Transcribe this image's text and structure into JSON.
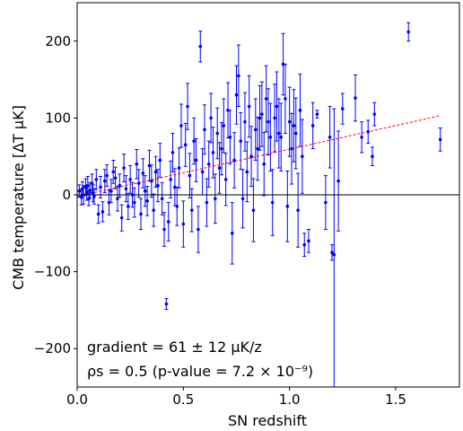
{
  "chart_data": {
    "type": "scatter",
    "xlabel": "SN redshift",
    "ylabel": "CMB temperature [ΔT μK]",
    "xlim": [
      0,
      1.8
    ],
    "ylim": [
      -250,
      250
    ],
    "xticks": [
      0.0,
      0.5,
      1.0,
      1.5
    ],
    "xtick_labels": [
      "0.0",
      "0.5",
      "1.0",
      "1.5"
    ],
    "yticks": [
      -200,
      -100,
      0,
      100,
      200
    ],
    "ytick_labels": [
      "−200",
      "−100",
      "0",
      "100",
      "200"
    ],
    "zero_line": true,
    "grid": false,
    "colors": {
      "points": "#0000ff",
      "fit": "#ff0000",
      "zero": "#000000"
    },
    "fit_line": {
      "x": [
        0.0,
        1.71
      ],
      "y": [
        -2,
        103
      ],
      "style": "dashed"
    },
    "annotations": [
      {
        "text": "gradient = 61 ± 12 μK/z",
        "position": "bottom-left"
      },
      {
        "text": "ρs = 0.5 (p-value = 7.2 × 10⁻⁹)",
        "position": "bottom-left"
      }
    ],
    "series": [
      {
        "points": [
          {
            "x": 0.01,
            "y": 5,
            "err": 8
          },
          {
            "x": 0.02,
            "y": -3,
            "err": 10
          },
          {
            "x": 0.025,
            "y": 8,
            "err": 9
          },
          {
            "x": 0.03,
            "y": 0,
            "err": 12
          },
          {
            "x": 0.04,
            "y": 10,
            "err": 11
          },
          {
            "x": 0.045,
            "y": 3,
            "err": 10
          },
          {
            "x": 0.05,
            "y": 12,
            "err": 12
          },
          {
            "x": 0.055,
            "y": -5,
            "err": 9
          },
          {
            "x": 0.06,
            "y": 6,
            "err": 10
          },
          {
            "x": 0.07,
            "y": 15,
            "err": 12
          },
          {
            "x": 0.075,
            "y": 2,
            "err": 11
          },
          {
            "x": 0.08,
            "y": -2,
            "err": 10
          },
          {
            "x": 0.09,
            "y": 20,
            "err": 13
          },
          {
            "x": 0.1,
            "y": -25,
            "err": 12
          },
          {
            "x": 0.11,
            "y": 10,
            "err": 14
          },
          {
            "x": 0.12,
            "y": -22,
            "err": 13
          },
          {
            "x": 0.13,
            "y": 18,
            "err": 15
          },
          {
            "x": 0.14,
            "y": 25,
            "err": 14
          },
          {
            "x": 0.15,
            "y": -10,
            "err": 16
          },
          {
            "x": 0.16,
            "y": 5,
            "err": 15
          },
          {
            "x": 0.17,
            "y": 30,
            "err": 15
          },
          {
            "x": 0.18,
            "y": 22,
            "err": 14
          },
          {
            "x": 0.19,
            "y": -5,
            "err": 16
          },
          {
            "x": 0.2,
            "y": 12,
            "err": 15
          },
          {
            "x": 0.21,
            "y": -30,
            "err": 17
          },
          {
            "x": 0.22,
            "y": 35,
            "err": 18
          },
          {
            "x": 0.23,
            "y": 8,
            "err": 17
          },
          {
            "x": 0.24,
            "y": -15,
            "err": 17
          },
          {
            "x": 0.25,
            "y": 20,
            "err": 18
          },
          {
            "x": 0.26,
            "y": 0,
            "err": 16
          },
          {
            "x": 0.27,
            "y": -10,
            "err": 19
          },
          {
            "x": 0.28,
            "y": 40,
            "err": 19
          },
          {
            "x": 0.29,
            "y": 15,
            "err": 18
          },
          {
            "x": 0.3,
            "y": -25,
            "err": 20
          },
          {
            "x": 0.31,
            "y": 28,
            "err": 19
          },
          {
            "x": 0.32,
            "y": 5,
            "err": 20
          },
          {
            "x": 0.33,
            "y": -8,
            "err": 19
          },
          {
            "x": 0.34,
            "y": 38,
            "err": 20
          },
          {
            "x": 0.35,
            "y": 18,
            "err": 21
          },
          {
            "x": 0.36,
            "y": -20,
            "err": 21
          },
          {
            "x": 0.37,
            "y": 30,
            "err": 20
          },
          {
            "x": 0.38,
            "y": 12,
            "err": 21
          },
          {
            "x": 0.39,
            "y": 45,
            "err": 22
          },
          {
            "x": 0.4,
            "y": -5,
            "err": 21
          },
          {
            "x": 0.41,
            "y": -45,
            "err": 22
          },
          {
            "x": 0.42,
            "y": -142,
            "err": 7
          },
          {
            "x": 0.43,
            "y": -35,
            "err": 25
          },
          {
            "x": 0.44,
            "y": 20,
            "err": 24
          },
          {
            "x": 0.45,
            "y": 55,
            "err": 25
          },
          {
            "x": 0.46,
            "y": 10,
            "err": 24
          },
          {
            "x": 0.47,
            "y": -15,
            "err": 25
          },
          {
            "x": 0.48,
            "y": 35,
            "err": 26
          },
          {
            "x": 0.49,
            "y": 90,
            "err": 28
          },
          {
            "x": 0.5,
            "y": -38,
            "err": 30
          },
          {
            "x": 0.51,
            "y": 65,
            "err": 28
          },
          {
            "x": 0.52,
            "y": 115,
            "err": 30
          },
          {
            "x": 0.53,
            "y": 25,
            "err": 29
          },
          {
            "x": 0.54,
            "y": -20,
            "err": 28
          },
          {
            "x": 0.55,
            "y": 70,
            "err": 30
          },
          {
            "x": 0.56,
            "y": 45,
            "err": 28
          },
          {
            "x": 0.57,
            "y": -45,
            "err": 30
          },
          {
            "x": 0.58,
            "y": 193,
            "err": 20
          },
          {
            "x": 0.59,
            "y": 30,
            "err": 30
          },
          {
            "x": 0.6,
            "y": 85,
            "err": 32
          },
          {
            "x": 0.61,
            "y": -10,
            "err": 31
          },
          {
            "x": 0.62,
            "y": 40,
            "err": 30
          },
          {
            "x": 0.63,
            "y": 100,
            "err": 32
          },
          {
            "x": 0.64,
            "y": 55,
            "err": 33
          },
          {
            "x": 0.65,
            "y": -5,
            "err": 32
          },
          {
            "x": 0.66,
            "y": 80,
            "err": 33
          },
          {
            "x": 0.67,
            "y": 35,
            "err": 33
          },
          {
            "x": 0.68,
            "y": 60,
            "err": 34
          },
          {
            "x": 0.69,
            "y": 90,
            "err": 35
          },
          {
            "x": 0.7,
            "y": 20,
            "err": 34
          },
          {
            "x": 0.71,
            "y": 110,
            "err": 36
          },
          {
            "x": 0.72,
            "y": 75,
            "err": 35
          },
          {
            "x": 0.73,
            "y": -50,
            "err": 40
          },
          {
            "x": 0.74,
            "y": 45,
            "err": 36
          },
          {
            "x": 0.75,
            "y": 130,
            "err": 38
          },
          {
            "x": 0.76,
            "y": 155,
            "err": 40
          },
          {
            "x": 0.77,
            "y": 70,
            "err": 37
          },
          {
            "x": 0.78,
            "y": -5,
            "err": 38
          },
          {
            "x": 0.79,
            "y": 95,
            "err": 38
          },
          {
            "x": 0.8,
            "y": 30,
            "err": 39
          },
          {
            "x": 0.81,
            "y": 115,
            "err": 40
          },
          {
            "x": 0.82,
            "y": 50,
            "err": 39
          },
          {
            "x": 0.83,
            "y": -20,
            "err": 41
          },
          {
            "x": 0.84,
            "y": 85,
            "err": 40
          },
          {
            "x": 0.85,
            "y": 60,
            "err": 41
          },
          {
            "x": 0.86,
            "y": 100,
            "err": 42
          },
          {
            "x": 0.87,
            "y": 105,
            "err": 42
          },
          {
            "x": 0.88,
            "y": 40,
            "err": 41
          },
          {
            "x": 0.89,
            "y": 125,
            "err": 43
          },
          {
            "x": 0.9,
            "y": 95,
            "err": 43
          },
          {
            "x": 0.91,
            "y": 75,
            "err": 44
          },
          {
            "x": 0.92,
            "y": -10,
            "err": 43
          },
          {
            "x": 0.93,
            "y": 100,
            "err": 44
          },
          {
            "x": 0.94,
            "y": 115,
            "err": 45
          },
          {
            "x": 0.95,
            "y": 80,
            "err": 45
          },
          {
            "x": 0.96,
            "y": 75,
            "err": 44
          },
          {
            "x": 0.97,
            "y": 170,
            "err": 40
          },
          {
            "x": 0.98,
            "y": 125,
            "err": 45
          },
          {
            "x": 0.99,
            "y": -15,
            "err": 46
          },
          {
            "x": 1.0,
            "y": 95,
            "err": 45
          },
          {
            "x": 1.01,
            "y": 60,
            "err": 46
          },
          {
            "x": 1.02,
            "y": 90,
            "err": 47
          },
          {
            "x": 1.03,
            "y": 80,
            "err": 46
          },
          {
            "x": 1.04,
            "y": -20,
            "err": 48
          },
          {
            "x": 1.05,
            "y": 110,
            "err": 47
          },
          {
            "x": 1.06,
            "y": 50,
            "err": 48
          },
          {
            "x": 1.07,
            "y": -65,
            "err": 15
          },
          {
            "x": 1.09,
            "y": -60,
            "err": 15
          },
          {
            "x": 1.11,
            "y": 90,
            "err": 30
          },
          {
            "x": 1.13,
            "y": 105,
            "err": 5
          },
          {
            "x": 1.17,
            "y": -10,
            "err": 35
          },
          {
            "x": 1.19,
            "y": 75,
            "err": 40
          },
          {
            "x": 1.2,
            "y": -75,
            "err": 10
          },
          {
            "x": 1.21,
            "y": -78,
            "err": 190
          },
          {
            "x": 1.23,
            "y": 18,
            "err": 65
          },
          {
            "x": 1.25,
            "y": 112,
            "err": 20
          },
          {
            "x": 1.31,
            "y": 126,
            "err": 30
          },
          {
            "x": 1.34,
            "y": 75,
            "err": 20
          },
          {
            "x": 1.37,
            "y": 82,
            "err": 15
          },
          {
            "x": 1.39,
            "y": 50,
            "err": 12
          },
          {
            "x": 1.4,
            "y": 105,
            "err": 15
          },
          {
            "x": 1.56,
            "y": 212,
            "err": 12
          },
          {
            "x": 1.71,
            "y": 72,
            "err": 15
          }
        ]
      }
    ]
  }
}
